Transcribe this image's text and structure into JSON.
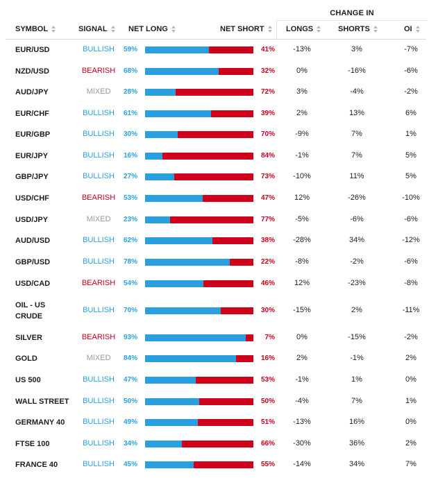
{
  "header": {
    "change_group": "CHANGE IN",
    "symbol": "SYMBOL",
    "signal": "SIGNAL",
    "net_long": "NET LONG",
    "net_short": "NET SHORT",
    "longs": "LONGS",
    "shorts": "SHORTS",
    "oi": "OI"
  },
  "colors": {
    "long": "#2a9fe0",
    "short": "#d0021b",
    "mixed": "#9a9a9a"
  },
  "rows": [
    {
      "symbol": [
        "EUR/USD"
      ],
      "signal": "BULLISH",
      "long": "59%",
      "short": "41%",
      "d_long": "-13%",
      "d_short": "3%",
      "d_oi": "-7%",
      "frac": 0.59
    },
    {
      "symbol": [
        "NZD/USD"
      ],
      "signal": "BEARISH",
      "long": "68%",
      "short": "32%",
      "d_long": "0%",
      "d_short": "-16%",
      "d_oi": "-6%",
      "frac": 0.68
    },
    {
      "symbol": [
        "AUD/JPY"
      ],
      "signal": "MIXED",
      "long": "28%",
      "short": "72%",
      "d_long": "3%",
      "d_short": "-4%",
      "d_oi": "-2%",
      "frac": 0.28
    },
    {
      "symbol": [
        "EUR/CHF"
      ],
      "signal": "BULLISH",
      "long": "61%",
      "short": "39%",
      "d_long": "2%",
      "d_short": "13%",
      "d_oi": "6%",
      "frac": 0.61
    },
    {
      "symbol": [
        "EUR/GBP"
      ],
      "signal": "BULLISH",
      "long": "30%",
      "short": "70%",
      "d_long": "-9%",
      "d_short": "7%",
      "d_oi": "1%",
      "frac": 0.3
    },
    {
      "symbol": [
        "EUR/JPY"
      ],
      "signal": "BULLISH",
      "long": "16%",
      "short": "84%",
      "d_long": "-1%",
      "d_short": "7%",
      "d_oi": "5%",
      "frac": 0.16
    },
    {
      "symbol": [
        "GBP/JPY"
      ],
      "signal": "BULLISH",
      "long": "27%",
      "short": "73%",
      "d_long": "-10%",
      "d_short": "11%",
      "d_oi": "5%",
      "frac": 0.27
    },
    {
      "symbol": [
        "USD/CHF"
      ],
      "signal": "BEARISH",
      "long": "53%",
      "short": "47%",
      "d_long": "12%",
      "d_short": "-26%",
      "d_oi": "-10%",
      "frac": 0.53
    },
    {
      "symbol": [
        "USD/JPY"
      ],
      "signal": "MIXED",
      "long": "23%",
      "short": "77%",
      "d_long": "-5%",
      "d_short": "-6%",
      "d_oi": "-6%",
      "frac": 0.23
    },
    {
      "symbol": [
        "AUD/USD"
      ],
      "signal": "BULLISH",
      "long": "62%",
      "short": "38%",
      "d_long": "-28%",
      "d_short": "34%",
      "d_oi": "-12%",
      "frac": 0.62
    },
    {
      "symbol": [
        "GBP/USD"
      ],
      "signal": "BULLISH",
      "long": "78%",
      "short": "22%",
      "d_long": "-8%",
      "d_short": "-2%",
      "d_oi": "-6%",
      "frac": 0.78
    },
    {
      "symbol": [
        "USD/CAD"
      ],
      "signal": "BEARISH",
      "long": "54%",
      "short": "46%",
      "d_long": "12%",
      "d_short": "-23%",
      "d_oi": "-8%",
      "frac": 0.54
    },
    {
      "symbol": [
        "OIL - US",
        "CRUDE"
      ],
      "signal": "BULLISH",
      "long": "70%",
      "short": "30%",
      "d_long": "-15%",
      "d_short": "2%",
      "d_oi": "-11%",
      "frac": 0.7
    },
    {
      "symbol": [
        "SILVER"
      ],
      "signal": "BEARISH",
      "long": "93%",
      "short": "7%",
      "d_long": "0%",
      "d_short": "-15%",
      "d_oi": "-2%",
      "frac": 0.93
    },
    {
      "symbol": [
        "GOLD"
      ],
      "signal": "MIXED",
      "long": "84%",
      "short": "16%",
      "d_long": "2%",
      "d_short": "-1%",
      "d_oi": "2%",
      "frac": 0.84
    },
    {
      "symbol": [
        "US 500"
      ],
      "signal": "BULLISH",
      "long": "47%",
      "short": "53%",
      "d_long": "-1%",
      "d_short": "1%",
      "d_oi": "0%",
      "frac": 0.47
    },
    {
      "symbol": [
        "WALL STREET"
      ],
      "signal": "BULLISH",
      "long": "50%",
      "short": "50%",
      "d_long": "-4%",
      "d_short": "7%",
      "d_oi": "1%",
      "frac": 0.5
    },
    {
      "symbol": [
        "GERMANY 40"
      ],
      "signal": "BULLISH",
      "long": "49%",
      "short": "51%",
      "d_long": "-13%",
      "d_short": "16%",
      "d_oi": "0%",
      "frac": 0.49
    },
    {
      "symbol": [
        "FTSE 100"
      ],
      "signal": "BULLISH",
      "long": "34%",
      "short": "66%",
      "d_long": "-30%",
      "d_short": "36%",
      "d_oi": "2%",
      "frac": 0.34
    },
    {
      "symbol": [
        "FRANCE 40"
      ],
      "signal": "BULLISH",
      "long": "45%",
      "short": "55%",
      "d_long": "-14%",
      "d_short": "34%",
      "d_oi": "7%",
      "frac": 0.45
    }
  ]
}
